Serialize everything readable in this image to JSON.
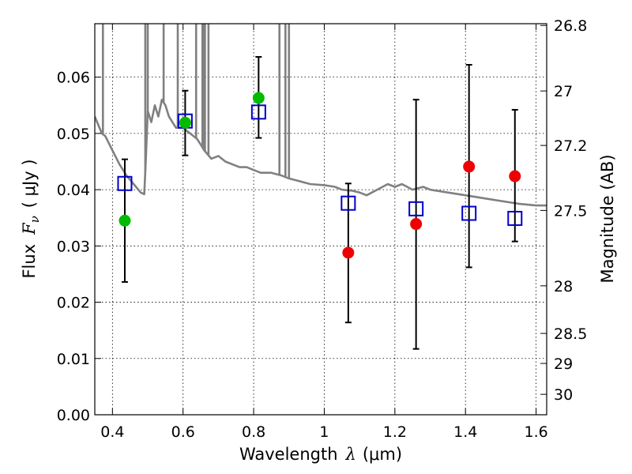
{
  "chart_data": {
    "type": "scatter",
    "title": "",
    "xlabel": "Wavelength",
    "xlabel_symbol": "λ",
    "xlabel_unit": "(μm)",
    "ylabel": "Flux",
    "ylabel_symbol": "F",
    "ylabel_subscript": "ν",
    "ylabel_unit": "( μJy )",
    "y2label": "Magnitude (AB)",
    "xlim": [
      0.35,
      1.63
    ],
    "ylim": [
      0.0,
      0.0695
    ],
    "grid": true,
    "x_ticks": [
      {
        "value": 0.4,
        "label": "0.4"
      },
      {
        "value": 0.6,
        "label": "0.6"
      },
      {
        "value": 0.8,
        "label": "0.8"
      },
      {
        "value": 1.0,
        "label": "1"
      },
      {
        "value": 1.2,
        "label": "1.2"
      },
      {
        "value": 1.4,
        "label": "1.4"
      },
      {
        "value": 1.6,
        "label": "1.6"
      }
    ],
    "y_ticks": [
      {
        "value": 0.0,
        "label": "0.00"
      },
      {
        "value": 0.01,
        "label": "0.01"
      },
      {
        "value": 0.02,
        "label": "0.02"
      },
      {
        "value": 0.03,
        "label": "0.03"
      },
      {
        "value": 0.04,
        "label": "0.04"
      },
      {
        "value": 0.05,
        "label": "0.05"
      },
      {
        "value": 0.06,
        "label": "0.06"
      }
    ],
    "y2_ticks": [
      {
        "value": 26.8,
        "label": "26.8"
      },
      {
        "value": 27.0,
        "label": "27"
      },
      {
        "value": 27.2,
        "label": "27.2"
      },
      {
        "value": 27.5,
        "label": "27.5"
      },
      {
        "value": 28.0,
        "label": "28"
      },
      {
        "value": 28.5,
        "label": "28.5"
      },
      {
        "value": 29.0,
        "label": "29"
      },
      {
        "value": 30.0,
        "label": "30"
      }
    ],
    "series": [
      {
        "name": "model-spectrum",
        "kind": "line",
        "color": "#808080",
        "x": [
          0.35,
          0.37,
          0.38,
          0.4,
          0.42,
          0.44,
          0.46,
          0.48,
          0.49,
          0.495,
          0.5,
          0.51,
          0.52,
          0.53,
          0.54,
          0.55,
          0.56,
          0.58,
          0.6,
          0.62,
          0.64,
          0.65,
          0.66,
          0.68,
          0.7,
          0.72,
          0.74,
          0.76,
          0.78,
          0.8,
          0.82,
          0.85,
          0.88,
          0.9,
          0.93,
          0.96,
          1.0,
          1.03,
          1.05,
          1.08,
          1.1,
          1.12,
          1.15,
          1.18,
          1.2,
          1.22,
          1.25,
          1.28,
          1.3,
          1.35,
          1.4,
          1.45,
          1.5,
          1.55,
          1.6,
          1.63
        ],
        "y": [
          0.053,
          0.05,
          0.0495,
          0.047,
          0.0445,
          0.0425,
          0.041,
          0.0395,
          0.0392,
          0.046,
          0.054,
          0.052,
          0.055,
          0.053,
          0.056,
          0.055,
          0.053,
          0.051,
          0.051,
          0.05,
          0.049,
          0.048,
          0.047,
          0.0455,
          0.046,
          0.045,
          0.0445,
          0.044,
          0.044,
          0.0435,
          0.043,
          0.043,
          0.0425,
          0.042,
          0.0415,
          0.041,
          0.0408,
          0.0405,
          0.04,
          0.0398,
          0.0395,
          0.039,
          0.04,
          0.041,
          0.0405,
          0.041,
          0.04,
          0.0405,
          0.04,
          0.0395,
          0.039,
          0.0385,
          0.038,
          0.0375,
          0.0372,
          0.0372
        ]
      },
      {
        "name": "model-emission-lines",
        "kind": "spikes",
        "color": "#808080",
        "x": [
          0.373,
          0.493,
          0.5,
          0.545,
          0.585,
          0.637,
          0.655,
          0.658,
          0.662,
          0.672,
          0.873,
          0.89,
          0.9
        ]
      },
      {
        "name": "model-photometry",
        "kind": "open-squares",
        "color": "#0000cc",
        "x": [
          0.435,
          0.606,
          0.814,
          1.068,
          1.26,
          1.41,
          1.54
        ],
        "y": [
          0.0411,
          0.0522,
          0.0538,
          0.0376,
          0.0366,
          0.0358,
          0.0349
        ]
      },
      {
        "name": "observed-detections",
        "kind": "filled-circles",
        "color": "#00bb00",
        "x": [
          0.435,
          0.606,
          0.814
        ],
        "y": [
          0.0345,
          0.0519,
          0.0563
        ],
        "yerr_low": [
          0.0236,
          0.0461,
          0.0492
        ],
        "yerr_high": [
          0.0454,
          0.0576,
          0.0636
        ]
      },
      {
        "name": "observed-upper-limits",
        "kind": "filled-circles",
        "color": "#ee0000",
        "x": [
          1.068,
          1.26,
          1.41,
          1.54
        ],
        "y": [
          0.0288,
          0.0339,
          0.0441,
          0.0424
        ],
        "yerr_low": [
          0.0164,
          0.0117,
          0.0262,
          0.0308
        ],
        "yerr_high": [
          0.0411,
          0.056,
          0.0622,
          0.0542
        ]
      }
    ]
  }
}
